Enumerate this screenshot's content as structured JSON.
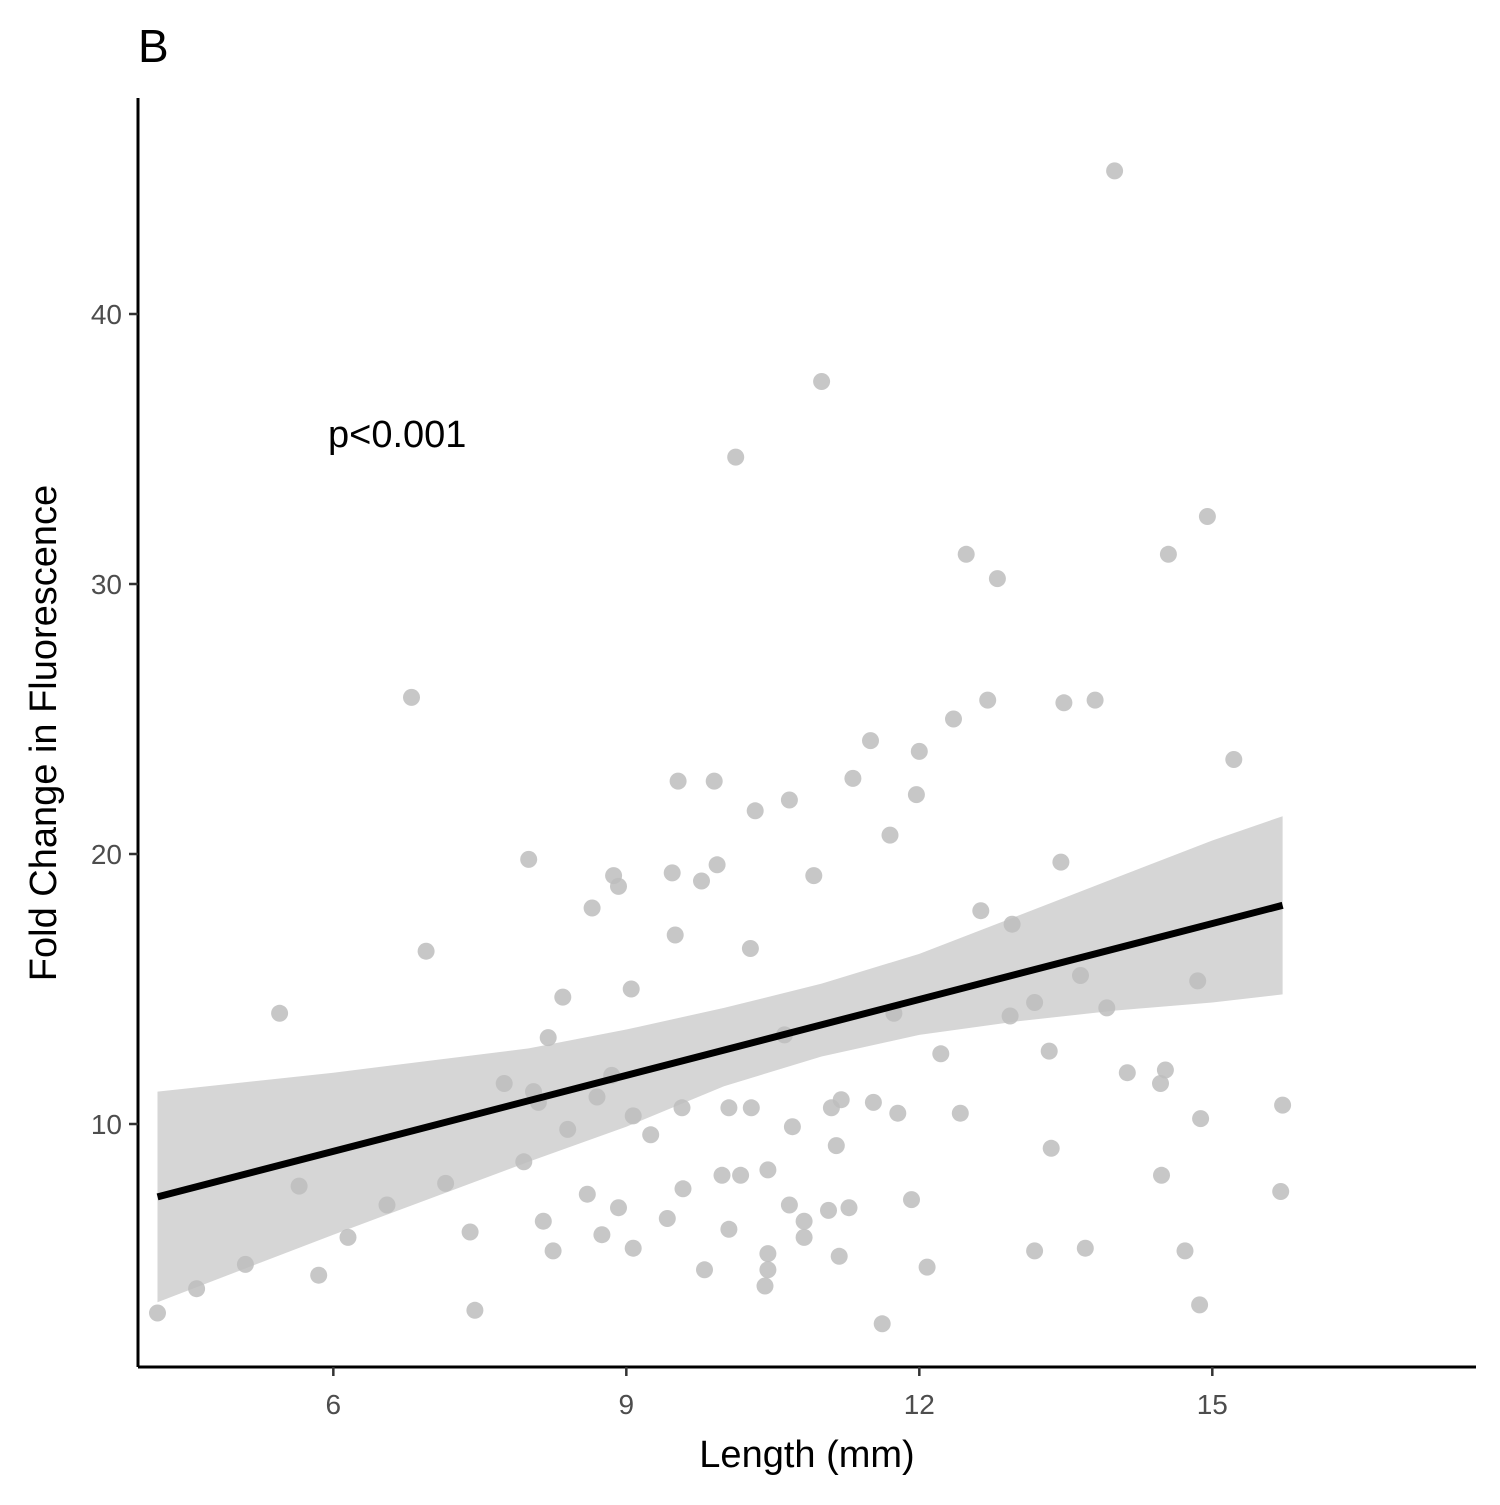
{
  "chart_data": {
    "type": "scatter",
    "panel_label": "B",
    "title": "",
    "xlabel": "Length (mm)",
    "ylabel": "Fold Change in Fluorescence",
    "annotation": "p<0.001",
    "xlim": [
      4.0,
      17.7
    ],
    "ylim": [
      1.0,
      48.0
    ],
    "x_ticks": [
      6,
      9,
      12,
      15
    ],
    "y_ticks": [
      10,
      20,
      30,
      40
    ],
    "grid": false,
    "legend": "none",
    "colors": {
      "points": "#bdbdbd",
      "fit_line": "#000000",
      "confidence_band": "#d6d6d6",
      "axis": "#000000",
      "tick_text": "#4d4d4d"
    },
    "points": [
      {
        "x": 4.2,
        "y": 3.0
      },
      {
        "x": 4.6,
        "y": 3.9
      },
      {
        "x": 5.1,
        "y": 4.8
      },
      {
        "x": 5.45,
        "y": 14.1
      },
      {
        "x": 5.65,
        "y": 7.7
      },
      {
        "x": 5.85,
        "y": 4.4
      },
      {
        "x": 6.15,
        "y": 5.8
      },
      {
        "x": 6.55,
        "y": 7.0
      },
      {
        "x": 6.8,
        "y": 25.8
      },
      {
        "x": 6.95,
        "y": 16.4
      },
      {
        "x": 7.15,
        "y": 7.8
      },
      {
        "x": 7.4,
        "y": 6.0
      },
      {
        "x": 7.45,
        "y": 3.1
      },
      {
        "x": 7.75,
        "y": 11.5
      },
      {
        "x": 7.95,
        "y": 8.6
      },
      {
        "x": 8.0,
        "y": 19.8
      },
      {
        "x": 8.05,
        "y": 11.2
      },
      {
        "x": 8.1,
        "y": 10.8
      },
      {
        "x": 8.15,
        "y": 6.4
      },
      {
        "x": 8.2,
        "y": 13.2
      },
      {
        "x": 8.25,
        "y": 5.3
      },
      {
        "x": 8.35,
        "y": 14.7
      },
      {
        "x": 8.4,
        "y": 9.8
      },
      {
        "x": 8.6,
        "y": 7.4
      },
      {
        "x": 8.65,
        "y": 18.0
      },
      {
        "x": 8.7,
        "y": 11.0
      },
      {
        "x": 8.75,
        "y": 5.9
      },
      {
        "x": 8.85,
        "y": 11.8
      },
      {
        "x": 8.87,
        "y": 19.2
      },
      {
        "x": 8.92,
        "y": 18.8
      },
      {
        "x": 8.92,
        "y": 6.9
      },
      {
        "x": 9.05,
        "y": 15.0
      },
      {
        "x": 9.07,
        "y": 10.3
      },
      {
        "x": 9.07,
        "y": 5.4
      },
      {
        "x": 9.25,
        "y": 9.6
      },
      {
        "x": 9.42,
        "y": 6.5
      },
      {
        "x": 9.47,
        "y": 19.3
      },
      {
        "x": 9.5,
        "y": 17.0
      },
      {
        "x": 9.53,
        "y": 22.7
      },
      {
        "x": 9.57,
        "y": 10.6
      },
      {
        "x": 9.58,
        "y": 7.6
      },
      {
        "x": 9.77,
        "y": 19.0
      },
      {
        "x": 9.8,
        "y": 4.6
      },
      {
        "x": 9.9,
        "y": 22.7
      },
      {
        "x": 9.93,
        "y": 19.6
      },
      {
        "x": 9.98,
        "y": 8.1
      },
      {
        "x": 10.05,
        "y": 10.6
      },
      {
        "x": 10.05,
        "y": 6.1
      },
      {
        "x": 10.12,
        "y": 34.7
      },
      {
        "x": 10.17,
        "y": 8.1
      },
      {
        "x": 10.27,
        "y": 16.5
      },
      {
        "x": 10.28,
        "y": 10.6
      },
      {
        "x": 10.32,
        "y": 21.6
      },
      {
        "x": 10.42,
        "y": 4.0
      },
      {
        "x": 10.45,
        "y": 5.2
      },
      {
        "x": 10.45,
        "y": 4.6
      },
      {
        "x": 10.45,
        "y": 8.3
      },
      {
        "x": 10.62,
        "y": 13.3
      },
      {
        "x": 10.67,
        "y": 22.0
      },
      {
        "x": 10.67,
        "y": 7.0
      },
      {
        "x": 10.7,
        "y": 9.9
      },
      {
        "x": 10.82,
        "y": 6.4
      },
      {
        "x": 10.82,
        "y": 5.8
      },
      {
        "x": 10.92,
        "y": 19.2
      },
      {
        "x": 11.0,
        "y": 37.5
      },
      {
        "x": 11.07,
        "y": 6.8
      },
      {
        "x": 11.1,
        "y": 10.6
      },
      {
        "x": 11.15,
        "y": 9.2
      },
      {
        "x": 11.18,
        "y": 5.1
      },
      {
        "x": 11.2,
        "y": 10.9
      },
      {
        "x": 11.28,
        "y": 6.9
      },
      {
        "x": 11.32,
        "y": 22.8
      },
      {
        "x": 11.5,
        "y": 24.2
      },
      {
        "x": 11.53,
        "y": 10.8
      },
      {
        "x": 11.62,
        "y": 2.6
      },
      {
        "x": 11.7,
        "y": 20.7
      },
      {
        "x": 11.74,
        "y": 14.1
      },
      {
        "x": 11.78,
        "y": 10.4
      },
      {
        "x": 11.92,
        "y": 7.2
      },
      {
        "x": 11.97,
        "y": 22.2
      },
      {
        "x": 12.0,
        "y": 23.8
      },
      {
        "x": 12.08,
        "y": 4.7
      },
      {
        "x": 12.22,
        "y": 12.6
      },
      {
        "x": 12.35,
        "y": 25.0
      },
      {
        "x": 12.42,
        "y": 10.4
      },
      {
        "x": 12.48,
        "y": 31.1
      },
      {
        "x": 12.63,
        "y": 17.9
      },
      {
        "x": 12.7,
        "y": 25.7
      },
      {
        "x": 12.8,
        "y": 30.2
      },
      {
        "x": 12.93,
        "y": 14.0
      },
      {
        "x": 12.95,
        "y": 17.4
      },
      {
        "x": 13.18,
        "y": 14.5
      },
      {
        "x": 13.18,
        "y": 5.3
      },
      {
        "x": 13.33,
        "y": 12.7
      },
      {
        "x": 13.35,
        "y": 9.1
      },
      {
        "x": 13.45,
        "y": 19.7
      },
      {
        "x": 13.48,
        "y": 25.6
      },
      {
        "x": 13.65,
        "y": 15.5
      },
      {
        "x": 13.7,
        "y": 5.4
      },
      {
        "x": 13.8,
        "y": 25.7
      },
      {
        "x": 13.92,
        "y": 14.3
      },
      {
        "x": 14.0,
        "y": 45.3
      },
      {
        "x": 14.13,
        "y": 11.9
      },
      {
        "x": 14.47,
        "y": 11.5
      },
      {
        "x": 14.48,
        "y": 8.1
      },
      {
        "x": 14.52,
        "y": 12.0
      },
      {
        "x": 14.55,
        "y": 31.1
      },
      {
        "x": 14.72,
        "y": 5.3
      },
      {
        "x": 14.85,
        "y": 15.3
      },
      {
        "x": 14.87,
        "y": 3.3
      },
      {
        "x": 14.88,
        "y": 10.2
      },
      {
        "x": 14.95,
        "y": 32.5
      },
      {
        "x": 15.22,
        "y": 23.5
      },
      {
        "x": 15.7,
        "y": 7.5
      },
      {
        "x": 15.72,
        "y": 10.7
      }
    ],
    "fit": {
      "x": [
        4.2,
        15.72
      ],
      "y": [
        7.3,
        18.1
      ]
    },
    "confidence_band": {
      "x": [
        4.2,
        6.0,
        8.0,
        9.0,
        10.0,
        11.0,
        12.0,
        13.0,
        14.0,
        15.0,
        15.72
      ],
      "lower": [
        3.4,
        5.9,
        8.6,
        9.9,
        11.4,
        12.5,
        13.3,
        13.8,
        14.2,
        14.5,
        14.8
      ],
      "upper": [
        11.2,
        11.9,
        12.8,
        13.5,
        14.3,
        15.2,
        16.3,
        17.7,
        19.1,
        20.5,
        21.4
      ]
    }
  }
}
